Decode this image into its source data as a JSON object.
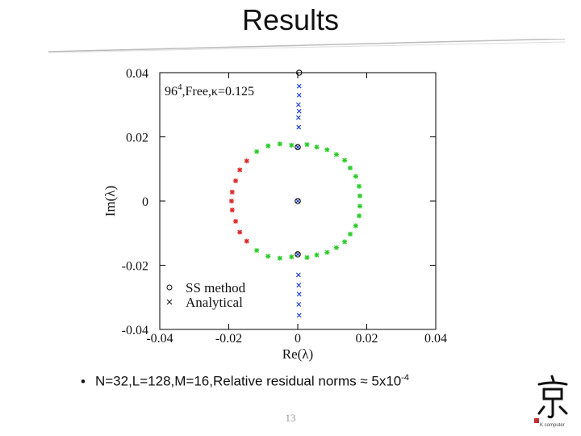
{
  "slide": {
    "title": "Results",
    "bullet_text": "N=32,L=128,M=16,Relative residual norms ≈ 5x10",
    "bullet_exponent": "-4",
    "page_number": "13",
    "logo_caption": "K computer"
  },
  "colors": {
    "green": "#22cc22",
    "red": "#dd2222",
    "blue": "#2244cc",
    "black": "#111111"
  },
  "chart_data": {
    "type": "scatter",
    "annotation": "96",
    "annotation_sup": "4",
    "annotation_rest": ",Free,κ=0.125",
    "xlabel": "Re(λ)",
    "ylabel": "Im(λ)",
    "xlim": [
      -0.04,
      0.04
    ],
    "ylim": [
      -0.04,
      0.04
    ],
    "x_ticks": [
      -0.04,
      -0.02,
      0,
      0.02,
      0.04
    ],
    "x_tick_labels": [
      "-0.04",
      "-0.02",
      "0",
      "0.02",
      "0.04"
    ],
    "y_ticks": [
      -0.04,
      -0.02,
      0,
      0.02,
      0.04
    ],
    "y_tick_labels": [
      "-0.04",
      "-0.02",
      "0",
      "0.02",
      "0.04"
    ],
    "legend": {
      "position": "bottom-left",
      "entries": [
        {
          "marker": "circle",
          "label": "SS method"
        },
        {
          "marker": "x",
          "label": "Analytical"
        }
      ]
    },
    "series": [
      {
        "marker": "asterisk",
        "color": "#22cc22",
        "points": [
          [
            -0.0119,
            0.0154
          ],
          [
            -0.0086,
            0.0172
          ],
          [
            -0.0052,
            0.0178
          ],
          [
            -0.0018,
            0.0174
          ],
          [
            0.0027,
            0.0176
          ],
          [
            0.0055,
            0.0168
          ],
          [
            0.0085,
            0.016
          ],
          [
            0.0112,
            0.0145
          ],
          [
            0.0136,
            0.0127
          ],
          [
            0.0152,
            0.0103
          ],
          [
            0.0168,
            0.0077
          ],
          [
            0.0178,
            0.0046
          ],
          [
            0.018,
            0.0016
          ],
          [
            0.018,
            -0.0016
          ],
          [
            0.0178,
            -0.0046
          ],
          [
            0.0168,
            -0.0077
          ],
          [
            0.0152,
            -0.0103
          ],
          [
            0.0136,
            -0.0127
          ],
          [
            0.0112,
            -0.0145
          ],
          [
            0.0085,
            -0.016
          ],
          [
            0.0055,
            -0.0168
          ],
          [
            0.0027,
            -0.0176
          ],
          [
            -0.0018,
            -0.0174
          ],
          [
            -0.0052,
            -0.0178
          ],
          [
            -0.0086,
            -0.0172
          ],
          [
            -0.0119,
            -0.0154
          ]
        ]
      },
      {
        "marker": "asterisk",
        "color": "#dd2222",
        "points": [
          [
            -0.0148,
            0.0125
          ],
          [
            -0.0168,
            0.0097
          ],
          [
            -0.018,
            0.0063
          ],
          [
            -0.019,
            0.0028
          ],
          [
            -0.0192,
            0.0
          ],
          [
            -0.019,
            -0.0028
          ],
          [
            -0.018,
            -0.0063
          ],
          [
            -0.0168,
            -0.0097
          ],
          [
            -0.0148,
            -0.0125
          ]
        ]
      },
      {
        "marker": "x",
        "color": "#2244cc",
        "points": [
          [
            0.0004,
            0.0358
          ],
          [
            0.0004,
            0.033
          ],
          [
            0.0002,
            0.03
          ],
          [
            0.0004,
            0.028
          ],
          [
            0.0002,
            0.026
          ],
          [
            0.0003,
            0.023
          ],
          [
            0.0,
            0.0168
          ],
          [
            0.0,
            0.0
          ],
          [
            0.0,
            -0.0166
          ],
          [
            0.0002,
            -0.023
          ],
          [
            0.0003,
            -0.0262
          ],
          [
            0.0004,
            -0.029
          ],
          [
            0.0003,
            -0.0322
          ],
          [
            0.0004,
            -0.0356
          ]
        ]
      },
      {
        "marker": "circle",
        "color": "#111111",
        "points": [
          [
            0.0,
            0.0168
          ],
          [
            0.0,
            0.0
          ],
          [
            0.0,
            -0.0166
          ],
          [
            0.0004,
            0.04
          ]
        ]
      }
    ]
  }
}
